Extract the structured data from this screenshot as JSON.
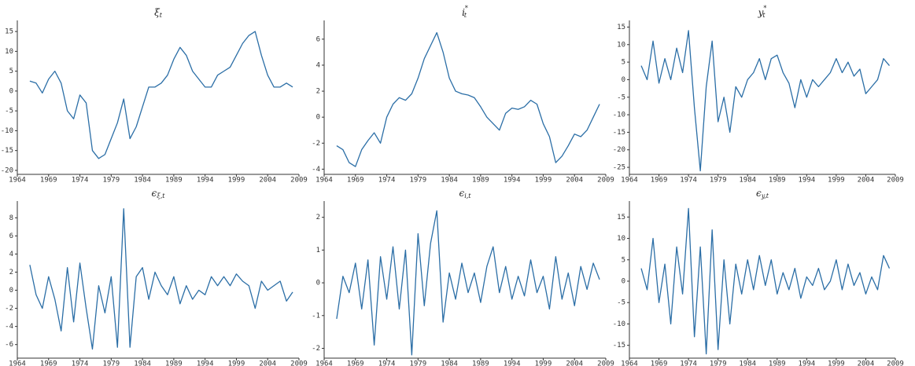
{
  "chart_data": [
    {
      "type": "line",
      "title": {
        "symbol": "ξ",
        "sub": "t"
      },
      "x": [
        1966,
        1967,
        1968,
        1969,
        1970,
        1971,
        1972,
        1973,
        1974,
        1975,
        1976,
        1977,
        1978,
        1979,
        1980,
        1981,
        1982,
        1983,
        1984,
        1985,
        1986,
        1987,
        1988,
        1989,
        1990,
        1991,
        1992,
        1993,
        1994,
        1995,
        1996,
        1997,
        1998,
        1999,
        2000,
        2001,
        2002,
        2003,
        2004,
        2005,
        2006,
        2007,
        2008
      ],
      "values": [
        2.5,
        2,
        -0.5,
        3,
        5,
        2,
        -5,
        -7,
        -1,
        -3,
        -15,
        -17,
        -16,
        -12,
        -8,
        -2,
        -12,
        -9,
        -4,
        1,
        1,
        2,
        4,
        8,
        11,
        9,
        5,
        3,
        1,
        1,
        4,
        5,
        6,
        9,
        12,
        14,
        15,
        9,
        4,
        1,
        1,
        2,
        1
      ],
      "color": "#2b6ea6",
      "xlim": [
        1964,
        2009
      ],
      "ylim": [
        -21,
        17
      ],
      "xticks": [
        1964,
        1969,
        1974,
        1979,
        1984,
        1989,
        1994,
        1999,
        2004,
        2009
      ],
      "yticks": [
        -20,
        -15,
        -10,
        -5,
        0,
        5,
        10,
        15
      ]
    },
    {
      "type": "line",
      "title": {
        "symbol": "i",
        "sup": "*",
        "sub": "t"
      },
      "x": [
        1966,
        1967,
        1968,
        1969,
        1970,
        1971,
        1972,
        1973,
        1974,
        1975,
        1976,
        1977,
        1978,
        1979,
        1980,
        1981,
        1982,
        1983,
        1984,
        1985,
        1986,
        1987,
        1988,
        1989,
        1990,
        1991,
        1992,
        1993,
        1994,
        1995,
        1996,
        1997,
        1998,
        1999,
        2000,
        2001,
        2002,
        2003,
        2004,
        2005,
        2006,
        2007,
        2008
      ],
      "values": [
        -2.2,
        -2.5,
        -3.5,
        -3.8,
        -2.5,
        -1.8,
        -1.2,
        -2,
        0,
        1,
        1.5,
        1.3,
        1.8,
        3,
        4.5,
        5.5,
        6.5,
        5,
        3,
        2,
        1.8,
        1.7,
        1.5,
        0.8,
        0,
        -0.5,
        -1,
        0.3,
        0.7,
        0.6,
        0.8,
        1.3,
        1,
        -0.5,
        -1.5,
        -3.5,
        -3,
        -2.2,
        -1.3,
        -1.5,
        -1,
        0,
        1
      ],
      "color": "#2b6ea6",
      "xlim": [
        1964,
        2009
      ],
      "ylim": [
        -4.4,
        7.2
      ],
      "xticks": [
        1964,
        1969,
        1974,
        1979,
        1984,
        1989,
        1994,
        1999,
        2004,
        2009
      ],
      "yticks": [
        -4,
        -2,
        0,
        2,
        4,
        6
      ]
    },
    {
      "type": "line",
      "title": {
        "symbol": "y",
        "sup": "*",
        "sub": "t"
      },
      "x": [
        1966,
        1967,
        1968,
        1969,
        1970,
        1971,
        1972,
        1973,
        1974,
        1975,
        1976,
        1977,
        1978,
        1979,
        1980,
        1981,
        1982,
        1983,
        1984,
        1985,
        1986,
        1987,
        1988,
        1989,
        1990,
        1991,
        1992,
        1993,
        1994,
        1995,
        1996,
        1997,
        1998,
        1999,
        2000,
        2001,
        2002,
        2003,
        2004,
        2005,
        2006,
        2007,
        2008
      ],
      "values": [
        4,
        0,
        11,
        -1,
        6,
        0,
        9,
        2,
        14,
        -8,
        -26,
        -2,
        11,
        -12,
        -5,
        -15,
        -2,
        -5,
        0,
        2,
        6,
        0,
        6,
        7,
        2,
        -1,
        -8,
        0,
        -5,
        0,
        -2,
        0,
        2,
        6,
        2,
        5,
        1,
        3,
        -4,
        -2,
        0,
        6,
        4
      ],
      "color": "#2b6ea6",
      "xlim": [
        1964,
        2009
      ],
      "ylim": [
        -27,
        16
      ],
      "xticks": [
        1964,
        1969,
        1974,
        1979,
        1984,
        1989,
        1994,
        1999,
        2004,
        2009
      ],
      "yticks": [
        -25,
        -20,
        -15,
        -10,
        -5,
        0,
        5,
        10,
        15
      ]
    },
    {
      "type": "line",
      "title": {
        "symbol": "ϵ",
        "sub": "ξ,t"
      },
      "x": [
        1966,
        1967,
        1968,
        1969,
        1970,
        1971,
        1972,
        1973,
        1974,
        1975,
        1976,
        1977,
        1978,
        1979,
        1980,
        1981,
        1982,
        1983,
        1984,
        1985,
        1986,
        1987,
        1988,
        1989,
        1990,
        1991,
        1992,
        1993,
        1994,
        1995,
        1996,
        1997,
        1998,
        1999,
        2000,
        2001,
        2002,
        2003,
        2004,
        2005,
        2006,
        2007,
        2008
      ],
      "values": [
        2.8,
        -0.5,
        -2,
        1.5,
        -1,
        -4.5,
        2.5,
        -3.5,
        3,
        -2,
        -6.5,
        0.5,
        -2.5,
        1.5,
        -6.3,
        9,
        -6.3,
        1.5,
        2.5,
        -1,
        2,
        0.5,
        -0.5,
        1.5,
        -1.5,
        0.5,
        -1,
        0,
        -0.5,
        1.5,
        0.5,
        1.5,
        0.5,
        1.8,
        1,
        0.5,
        -2,
        1,
        0,
        0.5,
        1,
        -1.2,
        -0.2
      ],
      "color": "#2b6ea6",
      "xlim": [
        1964,
        2009
      ],
      "ylim": [
        -7.5,
        9.5
      ],
      "xticks": [
        1964,
        1969,
        1974,
        1979,
        1984,
        1989,
        1994,
        1999,
        2004,
        2009
      ],
      "yticks": [
        -6,
        -4,
        -2,
        0,
        2,
        4,
        6,
        8
      ]
    },
    {
      "type": "line",
      "title": {
        "symbol": "ϵ",
        "sub": "i,t"
      },
      "x": [
        1966,
        1967,
        1968,
        1969,
        1970,
        1971,
        1972,
        1973,
        1974,
        1975,
        1976,
        1977,
        1978,
        1979,
        1980,
        1981,
        1982,
        1983,
        1984,
        1985,
        1986,
        1987,
        1988,
        1989,
        1990,
        1991,
        1992,
        1993,
        1994,
        1995,
        1996,
        1997,
        1998,
        1999,
        2000,
        2001,
        2002,
        2003,
        2004,
        2005,
        2006,
        2007,
        2008
      ],
      "values": [
        -1.1,
        0.2,
        -0.3,
        0.6,
        -0.8,
        0.7,
        -1.9,
        0.8,
        -0.5,
        1.1,
        -0.8,
        1,
        -2.2,
        1.5,
        -0.7,
        1.2,
        2.2,
        -1.2,
        0.3,
        -0.5,
        0.6,
        -0.3,
        0.3,
        -0.6,
        0.5,
        1.1,
        -0.3,
        0.5,
        -0.5,
        0.2,
        -0.4,
        0.7,
        -0.3,
        0.2,
        -0.8,
        0.8,
        -0.5,
        0.3,
        -0.7,
        0.5,
        -0.2,
        0.6,
        0.1
      ],
      "color": "#2b6ea6",
      "xlim": [
        1964,
        2009
      ],
      "ylim": [
        -2.3,
        2.4
      ],
      "xticks": [
        1964,
        1969,
        1974,
        1979,
        1984,
        1989,
        1994,
        1999,
        2004,
        2009
      ],
      "yticks": [
        -2,
        -1,
        0,
        1,
        2
      ]
    },
    {
      "type": "line",
      "title": {
        "symbol": "ϵ",
        "sub": "y,t"
      },
      "x": [
        1966,
        1967,
        1968,
        1969,
        1970,
        1971,
        1972,
        1973,
        1974,
        1975,
        1976,
        1977,
        1978,
        1979,
        1980,
        1981,
        1982,
        1983,
        1984,
        1985,
        1986,
        1987,
        1988,
        1989,
        1990,
        1991,
        1992,
        1993,
        1994,
        1995,
        1996,
        1997,
        1998,
        1999,
        2000,
        2001,
        2002,
        2003,
        2004,
        2005,
        2006,
        2007,
        2008
      ],
      "values": [
        3,
        -2,
        10,
        -5,
        4,
        -10,
        8,
        -3,
        17,
        -13,
        8,
        -17,
        12,
        -16,
        5,
        -10,
        4,
        -3,
        5,
        -2,
        6,
        -1,
        5,
        -3,
        2,
        -2,
        3,
        -4,
        1,
        -1,
        3,
        -2,
        0,
        5,
        -2,
        4,
        -1,
        2,
        -3,
        1,
        -2,
        6,
        3
      ],
      "color": "#2b6ea6",
      "xlim": [
        1964,
        2009
      ],
      "ylim": [
        -18,
        18
      ],
      "xticks": [
        1964,
        1969,
        1974,
        1979,
        1984,
        1989,
        1994,
        1999,
        2004,
        2009
      ],
      "yticks": [
        -15,
        -10,
        -5,
        0,
        5,
        10,
        15
      ]
    }
  ]
}
